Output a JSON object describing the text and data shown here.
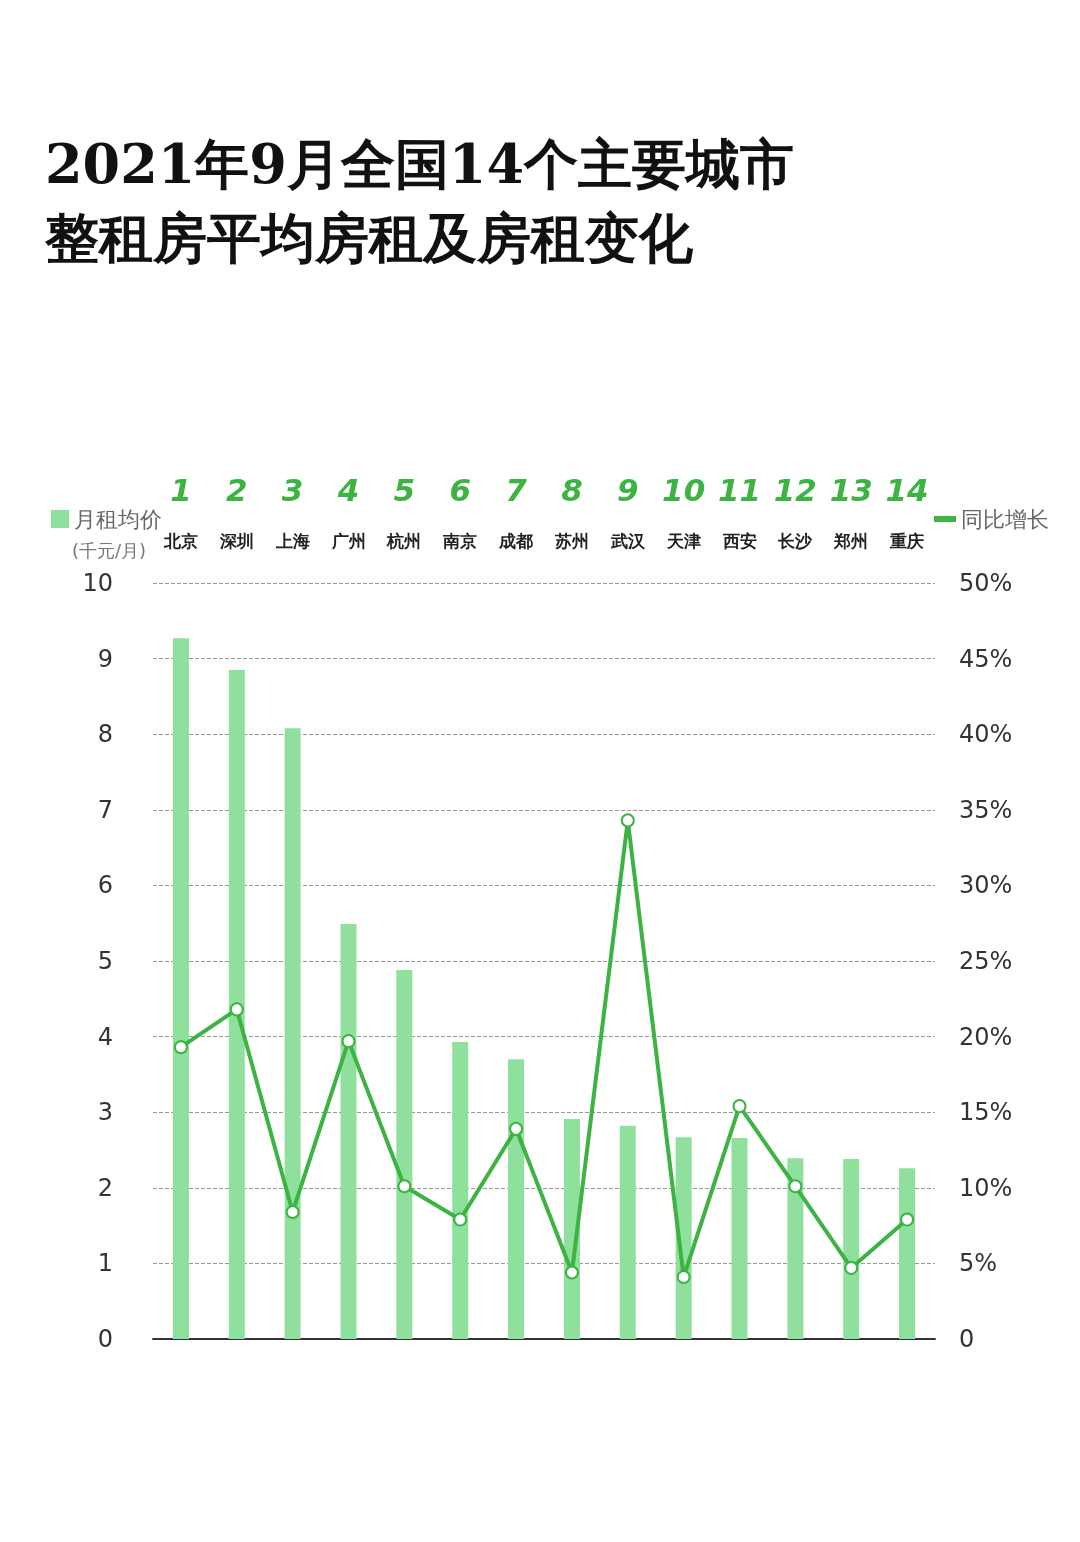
{
  "chart_data": {
    "type": "bar",
    "title": "2021年9月全国14个主要城市整租房平均房租及房租变化",
    "ylabel": "(千元/月)",
    "categories": [
      "北京",
      "深圳",
      "上海",
      "广州",
      "杭州",
      "南京",
      "成都",
      "苏州",
      "武汉",
      "天津",
      "西安",
      "长沙",
      "郑州",
      "重庆"
    ],
    "annotations": [
      "1",
      "2",
      "3",
      "4",
      "5",
      "6",
      "7",
      "8",
      "9",
      "10",
      "11",
      "12",
      "13",
      "14"
    ],
    "series": [
      {
        "name": "月租均价",
        "color": "#8fe09c",
        "values": [
          9.27,
          8.85,
          8.08,
          5.49,
          4.88,
          3.93,
          3.7,
          2.91,
          2.82,
          2.67,
          2.66,
          2.39,
          2.38,
          2.26
        ]
      },
      {
        "name": "同比增长",
        "type": "line",
        "axis": "y2",
        "color": "#3db343",
        "marker": "circle",
        "values": [
          19.3,
          21.8,
          8.4,
          19.7,
          10.1,
          7.9,
          13.9,
          4.4,
          34.3,
          4.1,
          15.4,
          10.1,
          4.7,
          7.9
        ]
      }
    ],
    "ylim": [
      0,
      10
    ],
    "yticks": [
      0,
      1,
      2,
      3,
      4,
      5,
      6,
      7,
      8,
      9,
      10
    ],
    "y2lim": [
      0,
      50
    ],
    "y2ticks": [
      0,
      {
        "value": 5,
        "label": "5%"
      },
      {
        "value": 10,
        "label": "10%"
      },
      {
        "value": 15,
        "label": "15%"
      },
      {
        "value": 20,
        "label": "20%"
      },
      {
        "value": 25,
        "label": "25%"
      },
      {
        "value": 30,
        "label": "30%"
      },
      {
        "value": 35,
        "label": "35%"
      },
      {
        "value": 40,
        "label": "40%"
      },
      {
        "value": 45,
        "label": "45%"
      },
      {
        "value": 50,
        "label": "50%"
      }
    ],
    "grid": "y",
    "legend": "top"
  }
}
